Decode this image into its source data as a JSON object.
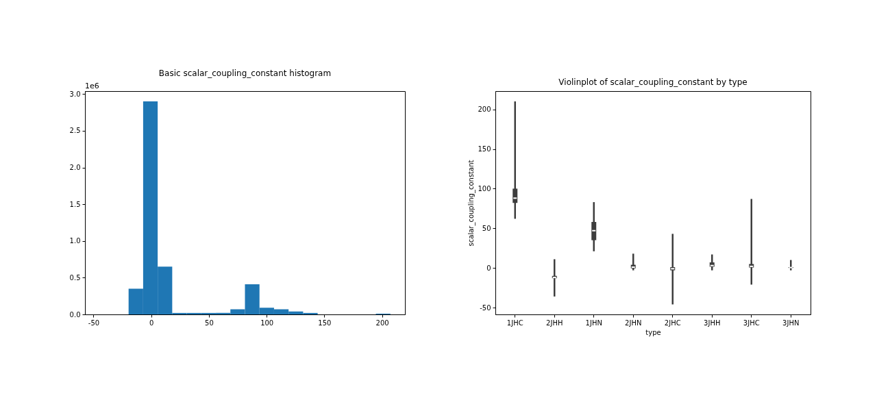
{
  "chart_data": [
    {
      "type": "histogram",
      "title": "Basic scalar_coupling_constant histogram",
      "annotations": [
        "1e6"
      ],
      "color": "#1f77b4",
      "bins": [
        -19.6,
        -7.0,
        5.6,
        18.2,
        30.8,
        43.4,
        56.0,
        68.6,
        81.2,
        93.8,
        106.4,
        119.0,
        131.6,
        144.2,
        156.8,
        169.4,
        182.0,
        194.6,
        207.2
      ],
      "values": [
        0.35,
        2.9,
        0.65,
        0.02,
        0.02,
        0.02,
        0.02,
        0.07,
        0.41,
        0.09,
        0.07,
        0.04,
        0.02,
        0,
        0,
        0,
        0,
        0.01
      ],
      "xlim": [
        -57.4,
        219.8
      ],
      "xticks": [
        -50,
        0,
        50,
        100,
        150,
        200
      ],
      "ylim": [
        0,
        3.04
      ],
      "yticks": [
        {
          "value": 0,
          "label": "0.0"
        },
        {
          "value": 0.5,
          "label": "0.5"
        },
        {
          "value": 1,
          "label": "1.0"
        },
        {
          "value": 1.5,
          "label": "1.5"
        },
        {
          "value": 2,
          "label": "2.0"
        },
        {
          "value": 2.5,
          "label": "2.5"
        },
        {
          "value": 3,
          "label": "3.0"
        }
      ]
    },
    {
      "type": "box",
      "title": "Violinplot of scalar_coupling_constant by type",
      "xlabel": "type",
      "ylabel": "scalar_coupling_constant",
      "color": "#3d3d3d",
      "categories": [
        "1JHC",
        "2JHH",
        "1JHN",
        "2JHN",
        "2JHC",
        "3JHH",
        "3JHC",
        "3JHN"
      ],
      "boxes": [
        {
          "low": 62,
          "q1": 82,
          "median": 88,
          "q3": 100,
          "high": 210
        },
        {
          "low": -36,
          "q1": -13,
          "median": -12,
          "q3": -10,
          "high": 11
        },
        {
          "low": 21,
          "q1": 35,
          "median": 47,
          "q3": 58,
          "high": 83
        },
        {
          "low": -3,
          "q1": -0.5,
          "median": 1,
          "q3": 4,
          "high": 18
        },
        {
          "low": -46,
          "q1": -3,
          "median": -1,
          "q3": 1,
          "high": 43
        },
        {
          "low": -3,
          "q1": 1.5,
          "median": 3,
          "q3": 7,
          "high": 17
        },
        {
          "low": -21,
          "q1": 0.5,
          "median": 2,
          "q3": 5,
          "high": 87
        },
        {
          "low": -3,
          "q1": 0,
          "median": 0.5,
          "q3": 1,
          "high": 10
        }
      ],
      "ylim": [
        -58.6,
        223
      ],
      "yticks": [
        -50,
        0,
        50,
        100,
        150,
        200
      ]
    }
  ]
}
